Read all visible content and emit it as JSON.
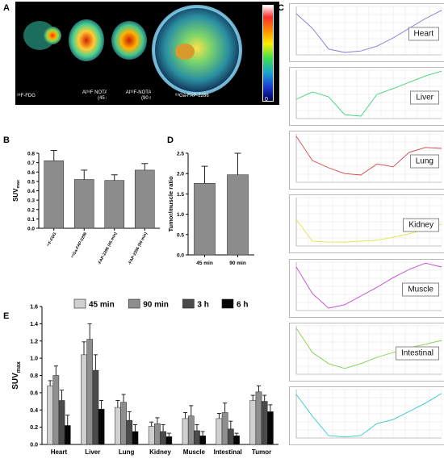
{
  "panel_labels": {
    "a": "A",
    "b": "B",
    "c": "C",
    "d": "D",
    "e": "E"
  },
  "pet": {
    "captions": [
      "¹⁸F-FDG",
      "Al¹⁸F NOTA-FAP-2286\n(45 min)",
      "Al¹⁸F-NOTA-FAP-2286\n(90 min)",
      "⁶⁸Ga-FAP-2286"
    ],
    "colorbar_min": "0"
  },
  "chart_data": [
    {
      "id": "B",
      "type": "bar",
      "categories": [
        "¹⁸F-FDG",
        "⁶⁸Ga-FAP-2286",
        "Al¹⁸F-NOTA-FAP-2286 (45 min)",
        "Al¹⁸F-NOTA-FAP-2286 (90 min)"
      ],
      "values": [
        0.72,
        0.52,
        0.51,
        0.62
      ],
      "errors": [
        0.11,
        0.1,
        0.06,
        0.07
      ],
      "ylabel": "SUVmax",
      "ylim": [
        0,
        0.8
      ],
      "yticks": [
        "0.0",
        "0.1",
        "0.2",
        "0.3",
        "0.4",
        "0.5",
        "0.6",
        "0.7",
        "0.8"
      ],
      "color": "#8c8c8c"
    },
    {
      "id": "D",
      "type": "bar",
      "categories": [
        "45 min",
        "90 min"
      ],
      "values": [
        1.76,
        1.97
      ],
      "errors": [
        0.42,
        0.53
      ],
      "ylabel": "Tumor/muscle ratio",
      "ylim": [
        0,
        2.5
      ],
      "yticks": [
        "0.0",
        "0.5",
        "1.0",
        "1.5",
        "2.0",
        "2.5"
      ],
      "color": "#8c8c8c"
    },
    {
      "id": "E",
      "type": "bar",
      "categories": [
        "Heart",
        "Liver",
        "Lung",
        "Kidney",
        "Muscle",
        "Intestinal",
        "Tumor"
      ],
      "series": [
        {
          "name": "45 min",
          "color": "#d0d0d0",
          "values": [
            0.68,
            1.04,
            0.43,
            0.21,
            0.3,
            0.3,
            0.51
          ],
          "errors": [
            0.06,
            0.15,
            0.08,
            0.05,
            0.07,
            0.06,
            0.06
          ]
        },
        {
          "name": "90 min",
          "color": "#8e8e8e",
          "values": [
            0.8,
            1.22,
            0.49,
            0.24,
            0.33,
            0.37,
            0.61
          ],
          "errors": [
            0.11,
            0.18,
            0.09,
            0.07,
            0.12,
            0.11,
            0.07
          ]
        },
        {
          "name": "3 h",
          "color": "#4a4a4a",
          "values": [
            0.51,
            0.86,
            0.28,
            0.15,
            0.16,
            0.18,
            0.5
          ],
          "errors": [
            0.12,
            0.18,
            0.1,
            0.08,
            0.07,
            0.09,
            0.07
          ]
        },
        {
          "name": "6 h",
          "color": "#050505",
          "values": [
            0.22,
            0.41,
            0.15,
            0.09,
            0.1,
            0.1,
            0.38
          ],
          "errors": [
            0.12,
            0.1,
            0.08,
            0.04,
            0.05,
            0.03,
            0.08
          ]
        }
      ],
      "ylabel": "SUVmax",
      "ylim": [
        0,
        1.6
      ],
      "yticks": [
        "0.0",
        "0.2",
        "0.4",
        "0.6",
        "0.8",
        "1.0",
        "1.2",
        "1.4",
        "1.6"
      ],
      "legend_position": "top"
    },
    {
      "id": "C",
      "type": "line",
      "panels": [
        {
          "name": "Heart",
          "color": "#7b7bd4",
          "values": [
            0.85,
            0.55,
            0.12,
            0.05,
            0.08,
            0.18,
            0.35,
            0.55,
            0.75,
            0.92
          ]
        },
        {
          "name": "Liver",
          "color": "#3ed17b",
          "values": [
            0.4,
            0.55,
            0.45,
            0.08,
            0.05,
            0.5,
            0.62,
            0.75,
            0.88,
            0.98
          ]
        },
        {
          "name": "Lung",
          "color": "#d64545",
          "values": [
            0.95,
            0.45,
            0.3,
            0.18,
            0.15,
            0.38,
            0.32,
            0.62,
            0.72,
            0.7
          ]
        },
        {
          "name": "Kidney",
          "color": "#e3e34a",
          "values": [
            0.55,
            0.1,
            0.08,
            0.08,
            0.1,
            0.12,
            0.18,
            0.25,
            0.35,
            0.45
          ]
        },
        {
          "name": "Muscle",
          "color": "#c24ad1",
          "values": [
            0.9,
            0.35,
            0.05,
            0.12,
            0.3,
            0.48,
            0.68,
            0.85,
            0.98,
            0.9
          ]
        },
        {
          "name": "Intestinal",
          "color": "#7fd14a",
          "values": [
            0.95,
            0.45,
            0.22,
            0.12,
            0.22,
            0.35,
            0.45,
            0.55,
            0.62,
            0.7
          ]
        },
        {
          "name": "",
          "color": "#2ec9c9",
          "values": [
            0.9,
            0.45,
            0.05,
            0.02,
            0.05,
            0.3,
            0.38,
            0.55,
            0.72,
            0.92
          ]
        }
      ]
    }
  ]
}
